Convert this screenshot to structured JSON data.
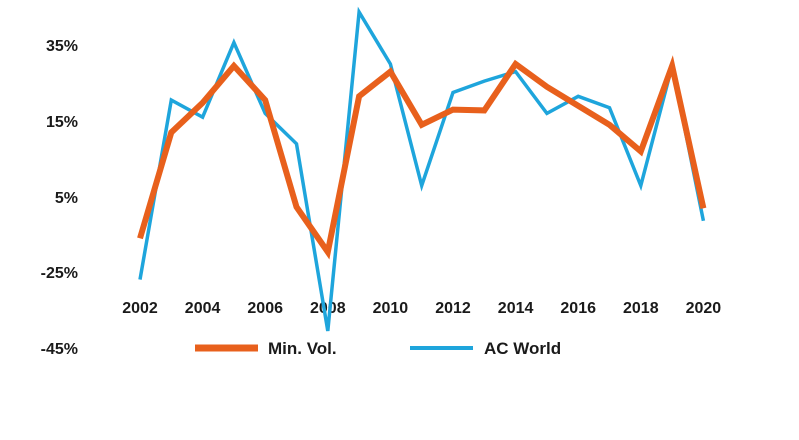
{
  "chart_data": {
    "type": "line",
    "title": "",
    "xlabel": "",
    "ylabel": "",
    "x": [
      2002,
      2003,
      2004,
      2005,
      2006,
      2007,
      2008,
      2009,
      2010,
      2011,
      2012,
      2013,
      2014,
      2015,
      2016,
      2017,
      2018,
      2019,
      2020
    ],
    "x_tick_labels": [
      "2002",
      "2004",
      "2006",
      "2008",
      "2010",
      "2012",
      "2014",
      "2016",
      "2018",
      "2020"
    ],
    "y_tick_labels": [
      "35%",
      "15%",
      "5%",
      "-25%",
      "-45%"
    ],
    "series": [
      {
        "name": "Min. Vol.",
        "color": "#e8601c",
        "values": [
          -11.5,
          13.5,
          19.8,
          29.5,
          20.5,
          1.0,
          -17.0,
          21.5,
          28.0,
          14.5,
          18.0,
          17.8,
          30.0,
          24.0,
          19.0,
          14.5,
          11.0,
          29.5,
          0.5
        ]
      },
      {
        "name": "AC World",
        "color": "#1ea5dc",
        "values": [
          -27.0,
          20.5,
          16.0,
          35.5,
          17.0,
          12.0,
          -40.5,
          42.0,
          30.0,
          6.5,
          22.5,
          25.5,
          28.0,
          17.0,
          21.5,
          18.5,
          6.5,
          29.5,
          -4.5
        ]
      }
    ],
    "legend": [
      "Min. Vol.",
      "AC World"
    ],
    "legend_position": "bottom",
    "grid": false
  }
}
